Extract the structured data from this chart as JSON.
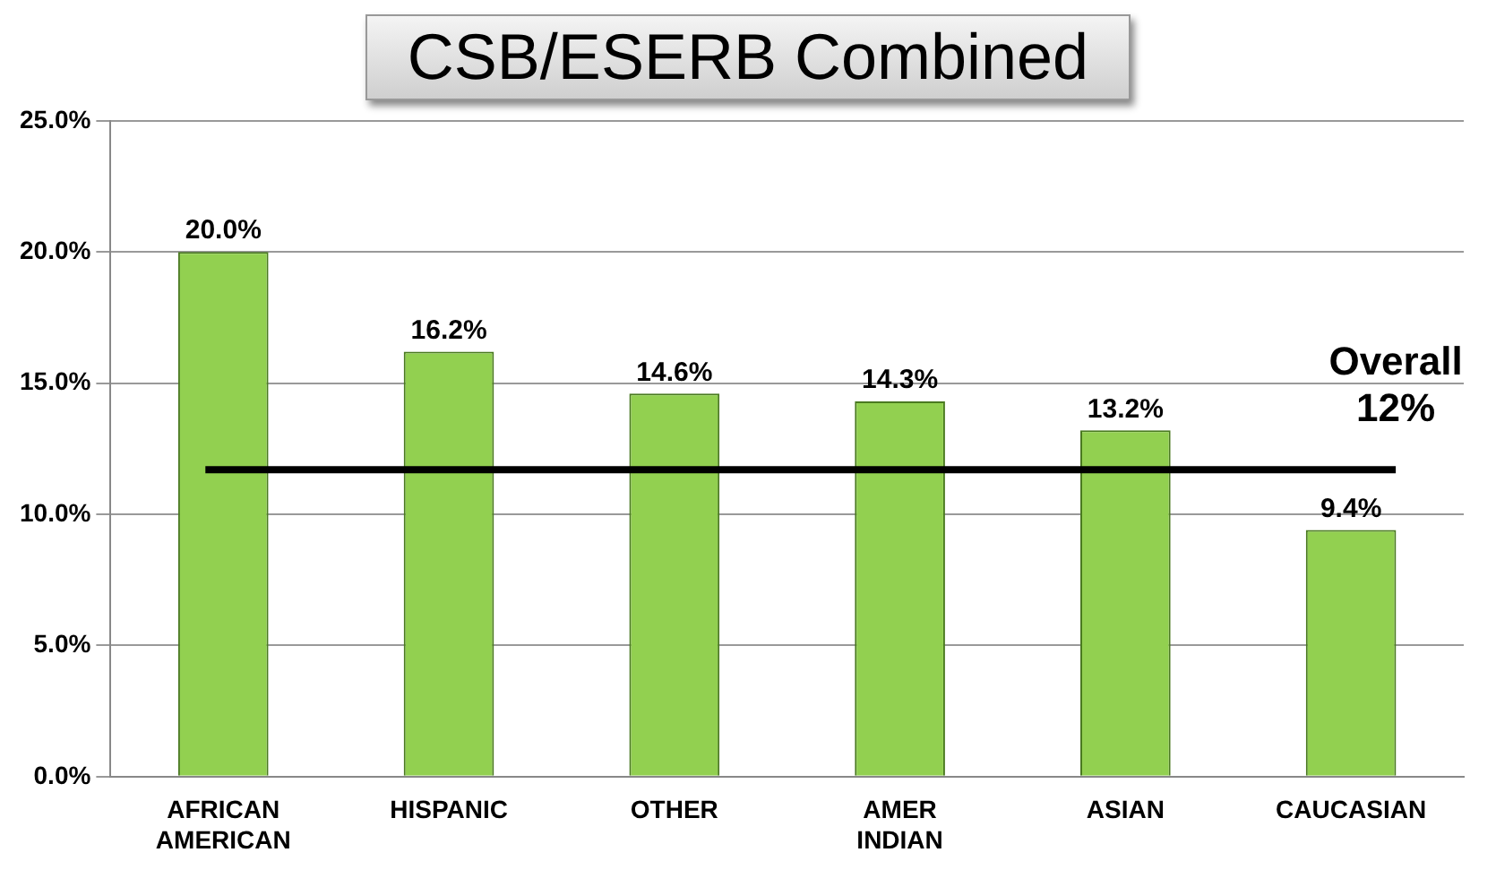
{
  "chart_data": {
    "type": "bar",
    "title": "CSB/ESERB Combined",
    "categories": [
      "AFRICAN AMERICAN",
      "HISPANIC",
      "OTHER",
      "AMER INDIAN",
      "ASIAN",
      "CAUCASIAN"
    ],
    "values": [
      20.0,
      16.2,
      14.6,
      14.3,
      13.2,
      9.4
    ],
    "color": "#92d050",
    "value_labels": [
      "20.0%",
      "16.2%",
      "14.6%",
      "14.3%",
      "13.2%",
      "9.4%"
    ],
    "ylim": [
      0,
      25
    ],
    "yticks": [
      {
        "value": 0,
        "label": "0.0%"
      },
      {
        "value": 5,
        "label": "5.0%"
      },
      {
        "value": 10,
        "label": "10.0%"
      },
      {
        "value": 15,
        "label": "15.0%"
      },
      {
        "value": 20,
        "label": "20.0%"
      },
      {
        "value": 25,
        "label": "25.0%"
      }
    ],
    "grid": "y",
    "ref_lines": [
      {
        "axis": "y",
        "value": 11.7,
        "label": "Overall 12%",
        "color": "#000000"
      }
    ],
    "legend": false
  }
}
